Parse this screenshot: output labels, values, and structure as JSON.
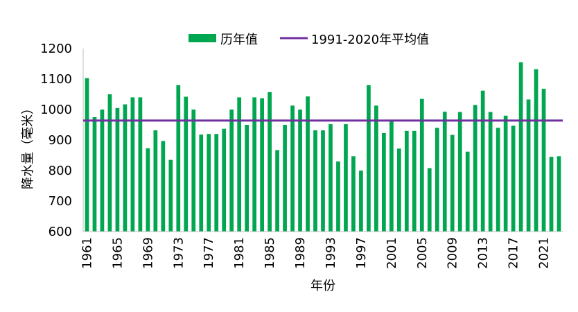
{
  "chart_data": {
    "type": "bar",
    "title": "",
    "xlabel": "年份",
    "ylabel": "降水量（毫米）",
    "ylim": [
      600,
      1200
    ],
    "yticks": [
      600,
      700,
      800,
      900,
      1000,
      1100,
      1200
    ],
    "xtick_labels": [
      "1961",
      "1965",
      "1969",
      "1973",
      "1977",
      "1981",
      "1985",
      "1989",
      "1993",
      "1997",
      "2001",
      "2005",
      "2009",
      "2013",
      "2017",
      "2021"
    ],
    "grid": false,
    "legend_position": "top",
    "categories": [
      1961,
      1962,
      1963,
      1964,
      1965,
      1966,
      1967,
      1968,
      1969,
      1970,
      1971,
      1972,
      1973,
      1974,
      1975,
      1976,
      1977,
      1978,
      1979,
      1980,
      1981,
      1982,
      1983,
      1984,
      1985,
      1986,
      1987,
      1988,
      1989,
      1990,
      1991,
      1992,
      1993,
      1994,
      1995,
      1996,
      1997,
      1998,
      1999,
      2000,
      2001,
      2002,
      2003,
      2004,
      2005,
      2006,
      2007,
      2008,
      2009,
      2010,
      2011,
      2012,
      2013,
      2014,
      2015,
      2016,
      2017,
      2018,
      2019,
      2020,
      2021,
      2022,
      2023
    ],
    "series": [
      {
        "name": "历年值",
        "type": "bar",
        "color": "#00a650",
        "values": [
          1103,
          975,
          1000,
          1050,
          1005,
          1017,
          1040,
          1040,
          873,
          932,
          897,
          835,
          1080,
          1042,
          1000,
          918,
          920,
          920,
          937,
          1000,
          1040,
          950,
          1040,
          1037,
          1057,
          867,
          950,
          1013,
          1000,
          1043,
          932,
          932,
          952,
          830,
          952,
          847,
          800,
          1080,
          1013,
          923,
          962,
          872,
          930,
          930,
          1035,
          808,
          940,
          993,
          917,
          992,
          862,
          1015,
          1062,
          992,
          940,
          980,
          947,
          1155,
          1033,
          1132,
          1068,
          845,
          847
        ]
      },
      {
        "name": "1991-2020年平均值",
        "type": "line",
        "color": "#7030a0",
        "value": 964
      }
    ]
  }
}
